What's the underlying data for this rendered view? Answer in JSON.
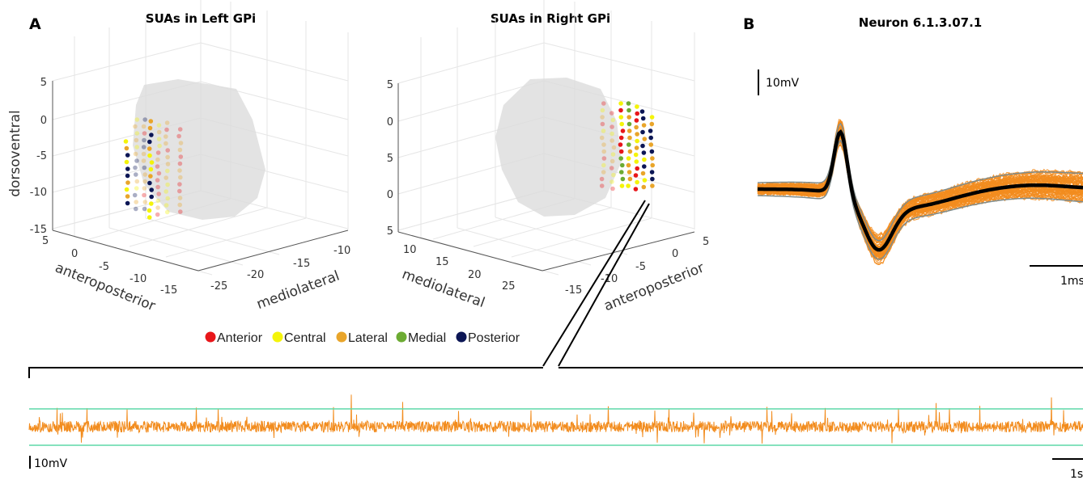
{
  "panels": {
    "A": {
      "letter": "A",
      "left": {
        "title": "SUAs in Left GPi",
        "zlabel": "dorsoventral",
        "xlabel": "anteroposterior",
        "ylabel": "mediolateral",
        "z_ticks": [
          "5",
          "0",
          "-5",
          "-10",
          "-15"
        ],
        "x_ticks": [
          "5",
          "0",
          "-5",
          "-10",
          "-15"
        ],
        "y_ticks": [
          "-10",
          "-15",
          "-20",
          "-25"
        ]
      },
      "right": {
        "title": "SUAs in Right GPi",
        "z_ticks": [
          "5",
          "0",
          "5",
          "0",
          "5"
        ],
        "y_ticks": [
          "10",
          "15",
          "20",
          "25"
        ],
        "x_ticks": [
          "5",
          "0",
          "-5",
          "-10",
          "-15"
        ],
        "ylabel": "mediolateral",
        "xlabel": "anteroposterior"
      },
      "legend": [
        {
          "label": "Anterior",
          "color": "#e8161a"
        },
        {
          "label": "Central",
          "color": "#f4f40a"
        },
        {
          "label": "Lateral",
          "color": "#e9a52a"
        },
        {
          "label": "Medial",
          "color": "#6cab33"
        },
        {
          "label": "Posterior",
          "color": "#0c1655"
        }
      ]
    },
    "B": {
      "letter": "B",
      "title": "Neuron 6.1.3.07.1",
      "amp_scale": "10mV",
      "time_scale": "1ms",
      "trace_color": "#f28c1e",
      "mean_color": "#000000",
      "sd_color": "#7f8c8c"
    },
    "C": {
      "amp_scale": "10mV",
      "time_scale": "1s",
      "trace_color": "#f28c1e",
      "threshold_color": "#5fd9a8"
    }
  }
}
